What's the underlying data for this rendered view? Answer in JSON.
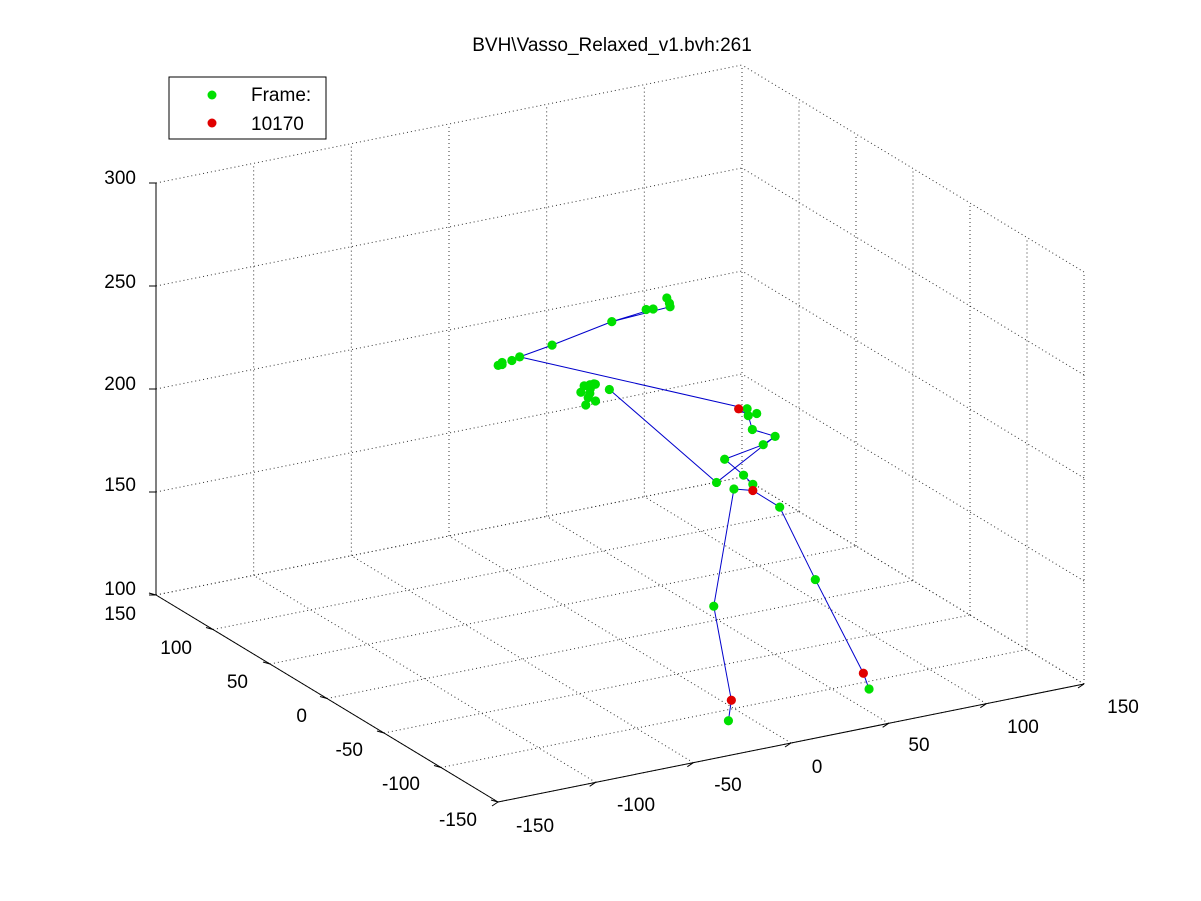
{
  "chart_data": {
    "type": "scatter3d",
    "title": "BVH\\Vasso_Relaxed_v1.bvh:261",
    "legend": {
      "position": "top-left",
      "entries": [
        {
          "label": "Frame:",
          "color": "#00e000"
        },
        {
          "label": "10170",
          "color": "#e00000"
        }
      ]
    },
    "grid": true,
    "x_axis": {
      "ticks": [
        "-150",
        "-100",
        "-50",
        "0",
        "50",
        "100",
        "150"
      ]
    },
    "y_axis": {
      "ticks": [
        "-150",
        "-100",
        "-50",
        "0",
        "50",
        "100",
        "150"
      ]
    },
    "z_axis": {
      "ticks": [
        "100",
        "150",
        "200",
        "250",
        "300"
      ]
    },
    "colors": {
      "joint": "#00e000",
      "highlight": "#e00000",
      "bone": "#0000cc"
    },
    "joints": [
      {
        "x": 84,
        "y": 100,
        "z": 212,
        "c": "g"
      },
      {
        "x": 80,
        "y": 108,
        "z": 209,
        "c": "g"
      },
      {
        "x": 77,
        "y": 109,
        "z": 209,
        "c": "g"
      },
      {
        "x": 60,
        "y": 110,
        "z": 206,
        "c": "g"
      },
      {
        "x": 30,
        "y": 111,
        "z": 200,
        "c": "g"
      },
      {
        "x": 14,
        "y": 112,
        "z": 197,
        "c": "g"
      },
      {
        "x": 10,
        "y": 112,
        "z": 196,
        "c": "g"
      },
      {
        "x": 5,
        "y": 112,
        "z": 196,
        "c": "g"
      },
      {
        "x": 5,
        "y": 112,
        "z": 195,
        "c": "g"
      },
      {
        "x": 3,
        "y": 112,
        "z": 195,
        "c": "g"
      },
      {
        "x": 75,
        "y": 17,
        "z": 192,
        "c": "g"
      },
      {
        "x": 73,
        "y": 21,
        "z": 191,
        "c": "r"
      },
      {
        "x": 77,
        "y": 12,
        "z": 191,
        "c": "g"
      },
      {
        "x": 75,
        "y": 16,
        "z": 189,
        "c": "g"
      },
      {
        "x": 73,
        "y": 9,
        "z": 185,
        "c": "g"
      },
      {
        "x": 80,
        "y": 1,
        "z": 183,
        "c": "g"
      },
      {
        "x": 57,
        "y": 13,
        "z": 161,
        "c": "g"
      },
      {
        "x": 35,
        "y": 90,
        "z": 177,
        "c": "g"
      },
      {
        "x": 40,
        "y": 90,
        "z": 178,
        "c": "g"
      },
      {
        "x": 45,
        "y": 100,
        "z": 182,
        "c": "g"
      },
      {
        "x": 43,
        "y": 100,
        "z": 182,
        "c": "g"
      },
      {
        "x": 40,
        "y": 100,
        "z": 182,
        "c": "g"
      },
      {
        "x": 50,
        "y": 95,
        "z": 180,
        "c": "g"
      },
      {
        "x": 78,
        "y": 8,
        "z": 177,
        "c": "g"
      },
      {
        "x": 67,
        "y": 23,
        "z": 167,
        "c": "g"
      },
      {
        "x": 72,
        "y": 15,
        "z": 161,
        "c": "g"
      },
      {
        "x": 75,
        "y": 12,
        "z": 157,
        "c": "g"
      },
      {
        "x": 75,
        "y": 12,
        "z": 154,
        "c": "r"
      },
      {
        "x": 70,
        "y": 20,
        "z": 153,
        "c": "g"
      },
      {
        "x": 80,
        "y": -3,
        "z": 150,
        "c": "g"
      },
      {
        "x": 48,
        "y": 0,
        "z": 107,
        "c": "g"
      },
      {
        "x": 100,
        "y": 0,
        "z": 110,
        "c": "g"
      },
      {
        "x": 50,
        "y": -12,
        "z": 65,
        "c": "r"
      },
      {
        "x": 45,
        "y": -18,
        "z": 58,
        "c": "g"
      },
      {
        "x": 110,
        "y": -25,
        "z": 71,
        "c": "r"
      },
      {
        "x": 110,
        "y": -30,
        "z": 65,
        "c": "g"
      }
    ]
  }
}
